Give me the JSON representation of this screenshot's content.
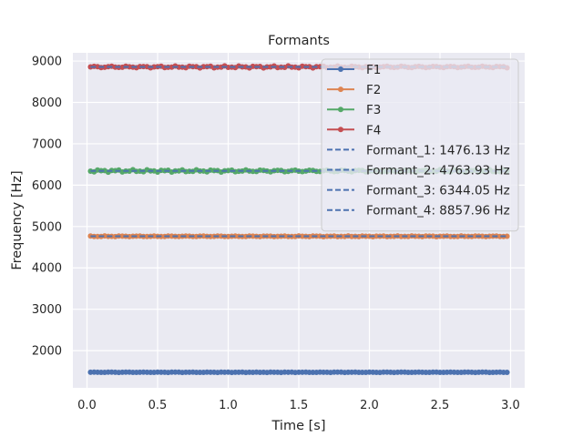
{
  "chart_data": {
    "type": "line",
    "title": "Formants",
    "xlabel": "Time [s]",
    "ylabel": "Frequency [Hz]",
    "xlim": [
      -0.1,
      3.1
    ],
    "ylim": [
      1100,
      9200
    ],
    "x_ticks": [
      0.0,
      0.5,
      1.0,
      1.5,
      2.0,
      2.5,
      3.0
    ],
    "x_tick_labels": [
      "0.0",
      "0.5",
      "1.0",
      "1.5",
      "2.0",
      "2.5",
      "3.0"
    ],
    "y_ticks": [
      2000,
      3000,
      4000,
      5000,
      6000,
      7000,
      8000,
      9000
    ],
    "y_tick_labels": [
      "2000",
      "3000",
      "4000",
      "5000",
      "6000",
      "7000",
      "8000",
      "9000"
    ],
    "grid": true,
    "legend_position": "upper right",
    "background_color": "#eaeaf2",
    "x_start": 0.025,
    "x_end": 2.975,
    "x_step": 0.025,
    "series": [
      {
        "name": "F1",
        "color": "#4c72b0",
        "center": 1476.13,
        "jitter": 5
      },
      {
        "name": "F2",
        "color": "#dd8452",
        "center": 4763.93,
        "jitter": 10
      },
      {
        "name": "F3",
        "color": "#55a868",
        "center": 6344.05,
        "jitter": 30
      },
      {
        "name": "F4",
        "color": "#c44e52",
        "center": 8857.96,
        "jitter": 25
      }
    ],
    "reference_lines": [
      {
        "name": "Formant_1: 1476.13 Hz",
        "value": 1476.13,
        "color": "#4c72b0",
        "style": "dashed"
      },
      {
        "name": "Formant_2: 4763.93 Hz",
        "value": 4763.93,
        "color": "#4c72b0",
        "style": "dashed"
      },
      {
        "name": "Formant_3: 6344.05 Hz",
        "value": 6344.05,
        "color": "#4c72b0",
        "style": "dashed"
      },
      {
        "name": "Formant_4: 8857.96 Hz",
        "value": 8857.96,
        "color": "#4c72b0",
        "style": "dashed"
      }
    ]
  }
}
